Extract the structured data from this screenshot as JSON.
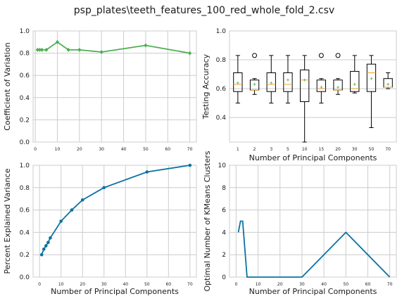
{
  "figure": {
    "title": "psp_plates\\teeth_features_100_red_whole_fold_2.csv"
  },
  "chart_data": [
    {
      "id": "cv",
      "type": "line",
      "title": "",
      "xlabel": "",
      "ylabel": "Coefficient of Variation",
      "xlim": [
        -1,
        73
      ],
      "ylim": [
        0.0,
        1.0
      ],
      "xticks": [
        0,
        10,
        20,
        30,
        40,
        50,
        60,
        70
      ],
      "yticks": [
        0.0,
        0.2,
        0.4,
        0.6,
        0.8,
        1.0
      ],
      "grid": true,
      "color": "#4caf50",
      "marker": "diamond",
      "series": [
        {
          "x": [
            1,
            2,
            3,
            5,
            10,
            15,
            20,
            30,
            50,
            70
          ],
          "y": [
            0.83,
            0.83,
            0.83,
            0.83,
            0.9,
            0.83,
            0.83,
            0.81,
            0.87,
            0.8
          ]
        }
      ]
    },
    {
      "id": "acc",
      "type": "box",
      "title": "",
      "xlabel": "Number of Principal Components",
      "ylabel": "Testing Accuracy",
      "ylim": [
        0.23,
        1.0
      ],
      "yticks": [
        0.4,
        0.6,
        0.8,
        1.0
      ],
      "grid": true,
      "categories": [
        "1",
        "2",
        "3",
        "5",
        "10",
        "15",
        "20",
        "30",
        "50",
        "70"
      ],
      "boxes": [
        {
          "whislo": 0.5,
          "q1": 0.58,
          "med": 0.63,
          "q3": 0.71,
          "whishi": 0.83,
          "mean": 0.64,
          "fliers": []
        },
        {
          "whislo": 0.56,
          "q1": 0.59,
          "med": 0.59,
          "q3": 0.66,
          "whishi": 0.67,
          "mean": 0.63,
          "fliers": [
            0.83
          ]
        },
        {
          "whislo": 0.5,
          "q1": 0.58,
          "med": 0.63,
          "q3": 0.71,
          "whishi": 0.83,
          "mean": 0.64,
          "fliers": []
        },
        {
          "whislo": 0.5,
          "q1": 0.58,
          "med": 0.63,
          "q3": 0.71,
          "whishi": 0.83,
          "mean": 0.66,
          "fliers": []
        },
        {
          "whislo": 0.23,
          "q1": 0.51,
          "med": 0.66,
          "q3": 0.73,
          "whishi": 0.83,
          "mean": 0.66,
          "fliers": []
        },
        {
          "whislo": 0.5,
          "q1": 0.58,
          "med": 0.6,
          "q3": 0.66,
          "whishi": 0.67,
          "mean": 0.61,
          "fliers": [
            0.83
          ]
        },
        {
          "whislo": 0.56,
          "q1": 0.59,
          "med": 0.59,
          "q3": 0.66,
          "whishi": 0.67,
          "mean": 0.61,
          "fliers": [
            0.83
          ]
        },
        {
          "whislo": 0.57,
          "q1": 0.58,
          "med": 0.6,
          "q3": 0.72,
          "whishi": 0.83,
          "mean": 0.63,
          "fliers": []
        },
        {
          "whislo": 0.33,
          "q1": 0.58,
          "med": 0.71,
          "q3": 0.77,
          "whishi": 0.83,
          "mean": 0.67,
          "fliers": []
        },
        {
          "whislo": 0.6,
          "q1": 0.61,
          "med": 0.61,
          "q3": 0.67,
          "whishi": 0.71,
          "mean": 0.63,
          "fliers": []
        }
      ]
    },
    {
      "id": "pev",
      "type": "line",
      "title": "",
      "xlabel": "Number of Principal Components",
      "ylabel": "Percent Explained Variance",
      "xlim": [
        -3,
        73
      ],
      "ylim": [
        0.0,
        1.0
      ],
      "xticks": [
        0,
        10,
        20,
        30,
        40,
        50,
        60,
        70
      ],
      "yticks": [
        0.0,
        0.2,
        0.4,
        0.6,
        0.8,
        1.0
      ],
      "grid": true,
      "color": "#0b72a1",
      "marker": "circle",
      "series": [
        {
          "x": [
            1,
            2,
            3,
            4,
            5,
            10,
            15,
            20,
            30,
            50,
            70
          ],
          "y": [
            0.2,
            0.25,
            0.28,
            0.31,
            0.35,
            0.5,
            0.6,
            0.69,
            0.8,
            0.94,
            1.0
          ]
        }
      ]
    },
    {
      "id": "kmeans",
      "type": "line",
      "title": "",
      "xlabel": "Number of Principal Components",
      "ylabel": "Optimal Number of KMeans Clusters",
      "xlim": [
        -3,
        73
      ],
      "ylim": [
        0,
        10
      ],
      "xticks": [
        0,
        10,
        20,
        30,
        40,
        50,
        60,
        70
      ],
      "yticks": [
        0,
        2,
        4,
        6,
        8,
        10
      ],
      "grid": true,
      "color": "#0b72a1",
      "marker": "none",
      "series": [
        {
          "x": [
            1,
            2,
            3,
            5,
            10,
            15,
            20,
            30,
            50,
            70
          ],
          "y": [
            4,
            5,
            5,
            0,
            0,
            0,
            0,
            0,
            4,
            0
          ]
        }
      ]
    }
  ]
}
